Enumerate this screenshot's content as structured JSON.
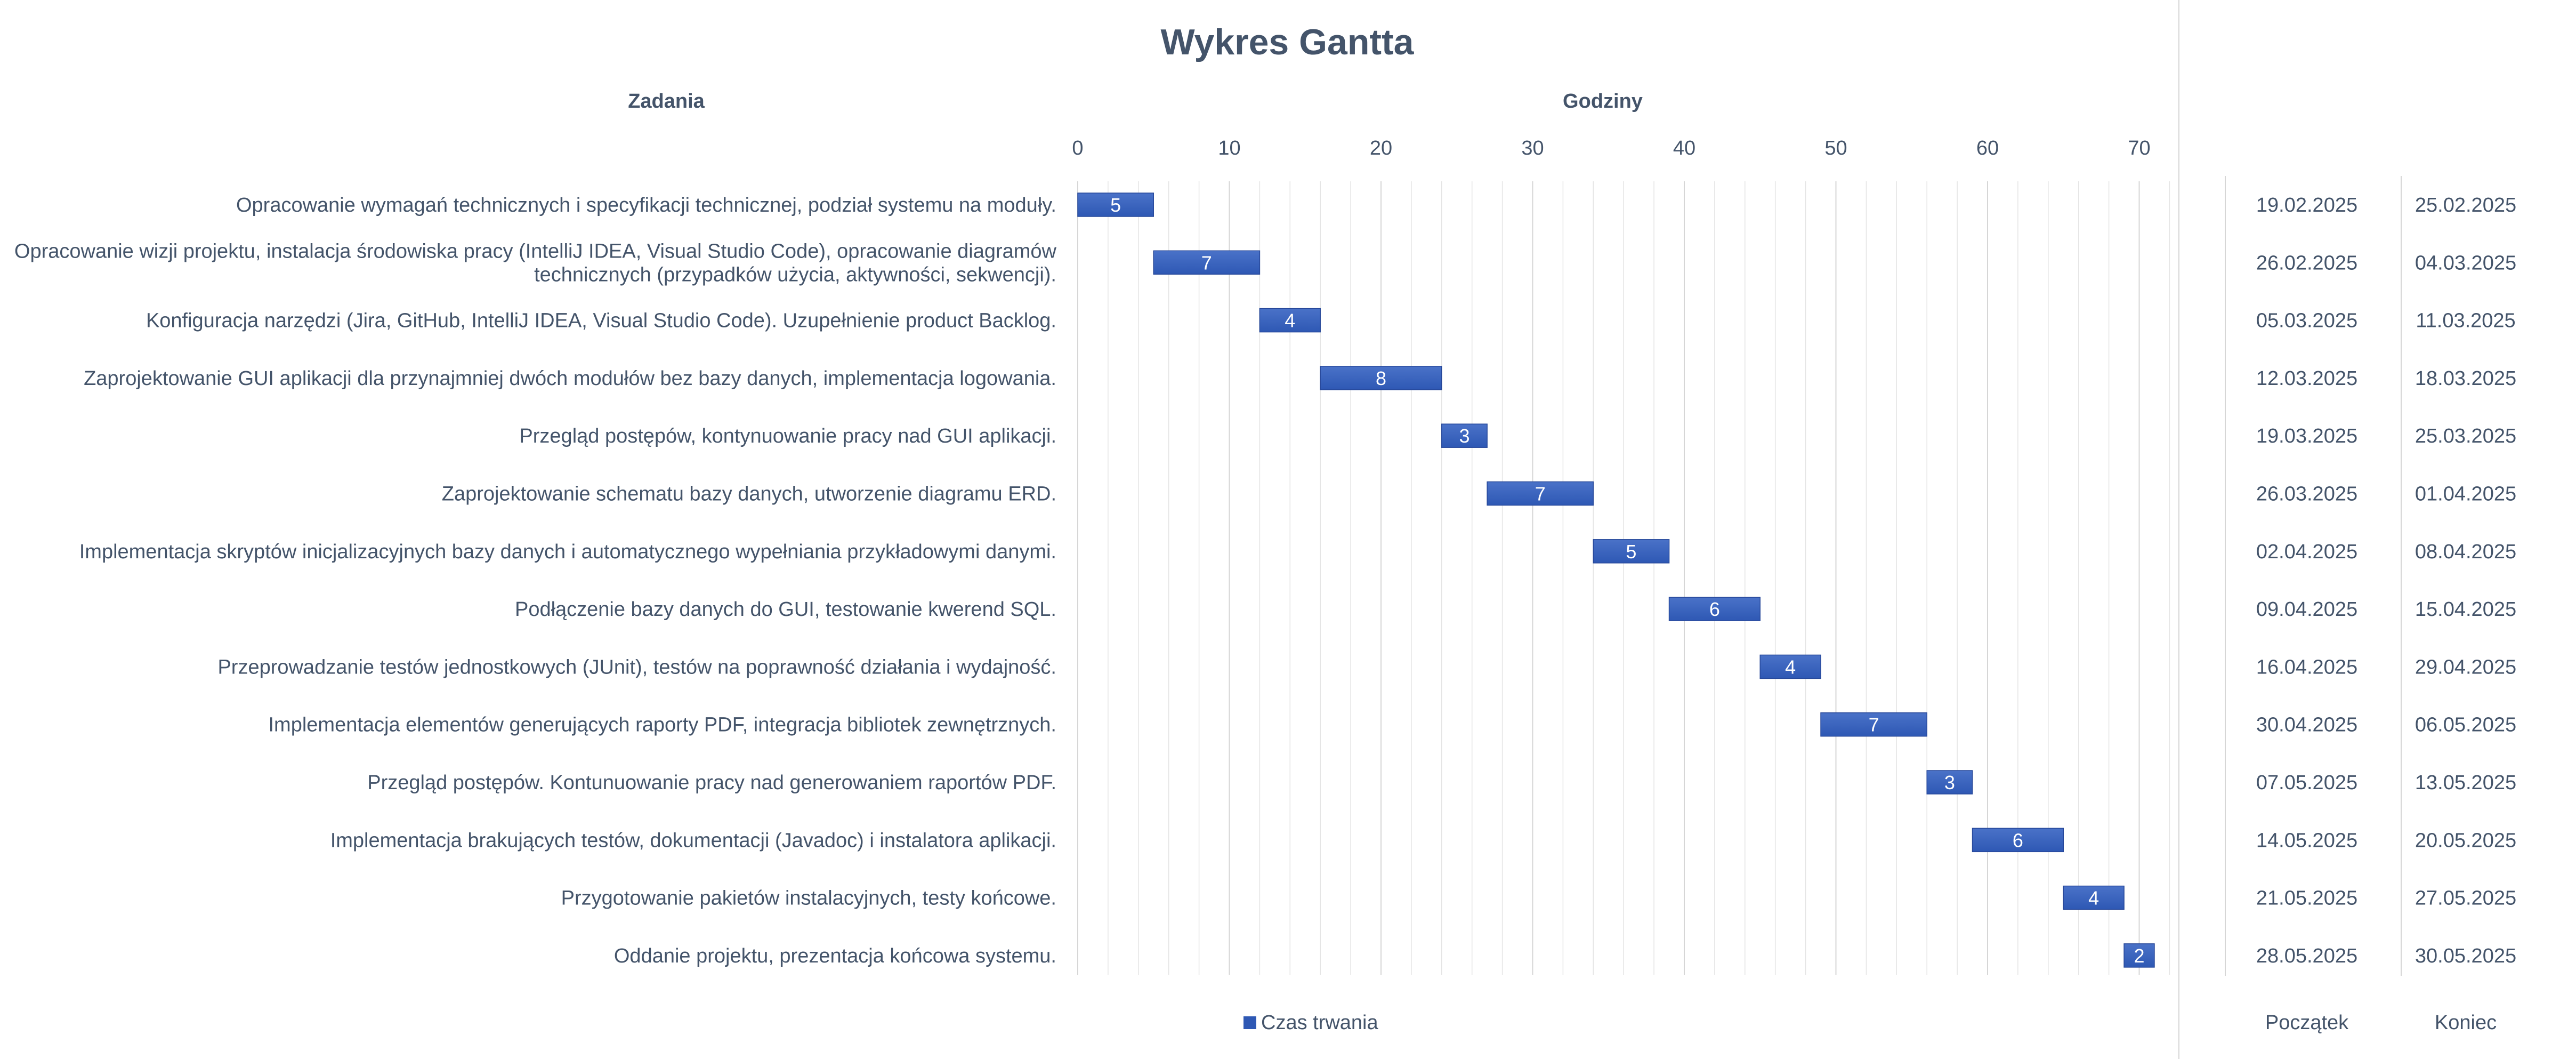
{
  "chart_data": {
    "type": "bar",
    "title": "Wykres Gantta",
    "tasks_header": "Zadania",
    "xlabel": "Godziny",
    "xlim": [
      0,
      72
    ],
    "xticks": [
      0,
      10,
      20,
      30,
      40,
      50,
      60,
      70
    ],
    "grid": true,
    "colors": {
      "bar": "#2e58b4",
      "bar_light": "#4a72c8",
      "text": "#44546a",
      "grid": "#e4e4e4"
    },
    "legend": {
      "label": "Czas trwania",
      "position": "bottom"
    },
    "start_header": "Początek",
    "end_header": "Koniec",
    "tasks": [
      {
        "label": [
          "Opracowanie wymagań technicznych i specyfikacji technicznej, podział systemu na moduły."
        ],
        "start": 0,
        "duration": 5,
        "start_date": "19.02.2025",
        "end_date": "25.02.2025"
      },
      {
        "label": [
          "Opracowanie wizji projektu, instalacja środowiska pracy (IntelliJ IDEA, Visual Studio Code), opracowanie diagramów",
          "technicznych (przypadków użycia, aktywności, sekwencji)."
        ],
        "start": 5,
        "duration": 7,
        "start_date": "26.02.2025",
        "end_date": "04.03.2025"
      },
      {
        "label": [
          "Konfiguracja narzędzi (Jira, GitHub, IntelliJ IDEA, Visual Studio Code). Uzupełnienie product Backlog."
        ],
        "start": 12,
        "duration": 4,
        "start_date": "05.03.2025",
        "end_date": "11.03.2025"
      },
      {
        "label": [
          "Zaprojektowanie GUI aplikacji dla przynajmniej dwóch modułów bez bazy danych, implementacja logowania."
        ],
        "start": 16,
        "duration": 8,
        "start_date": "12.03.2025",
        "end_date": "18.03.2025"
      },
      {
        "label": [
          "Przegląd postępów, kontynuowanie pracy nad GUI aplikacji."
        ],
        "start": 24,
        "duration": 3,
        "start_date": "19.03.2025",
        "end_date": "25.03.2025"
      },
      {
        "label": [
          "Zaprojektowanie schematu bazy danych, utworzenie diagramu ERD."
        ],
        "start": 27,
        "duration": 7,
        "start_date": "26.03.2025",
        "end_date": "01.04.2025"
      },
      {
        "label": [
          "Implementacja skryptów inicjalizacyjnych bazy danych i automatycznego wypełniania przykładowymi danymi."
        ],
        "start": 34,
        "duration": 5,
        "start_date": "02.04.2025",
        "end_date": "08.04.2025"
      },
      {
        "label": [
          "Podłączenie bazy danych do GUI, testowanie kwerend SQL."
        ],
        "start": 39,
        "duration": 6,
        "start_date": "09.04.2025",
        "end_date": "15.04.2025"
      },
      {
        "label": [
          "Przeprowadzanie testów jednostkowych (JUnit), testów na poprawność działania i wydajność."
        ],
        "start": 45,
        "duration": 4,
        "start_date": "16.04.2025",
        "end_date": "29.04.2025"
      },
      {
        "label": [
          "Implementacja elementów generujących raporty PDF, integracja bibliotek zewnętrznych."
        ],
        "start": 49,
        "duration": 7,
        "start_date": "30.04.2025",
        "end_date": "06.05.2025"
      },
      {
        "label": [
          "Przegląd postępów. Kontunuowanie pracy nad generowaniem raportów PDF."
        ],
        "start": 56,
        "duration": 3,
        "start_date": "07.05.2025",
        "end_date": "13.05.2025"
      },
      {
        "label": [
          "Implementacja brakujących testów, dokumentacji (Javadoc) i instalatora aplikacji."
        ],
        "start": 59,
        "duration": 6,
        "start_date": "14.05.2025",
        "end_date": "20.05.2025"
      },
      {
        "label": [
          "Przygotowanie pakietów instalacyjnych, testy końcowe."
        ],
        "start": 65,
        "duration": 4,
        "start_date": "21.05.2025",
        "end_date": "27.05.2025"
      },
      {
        "label": [
          "Oddanie projektu, prezentacja końcowa systemu."
        ],
        "start": 69,
        "duration": 2,
        "start_date": "28.05.2025",
        "end_date": "30.05.2025"
      }
    ]
  }
}
